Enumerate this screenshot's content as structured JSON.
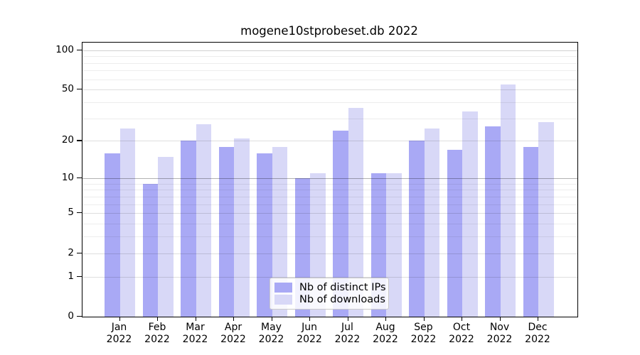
{
  "title": "mogene10stprobeset.db 2022",
  "legend": {
    "items": [
      {
        "label": "Nb of distinct IPs"
      },
      {
        "label": "Nb of downloads"
      }
    ]
  },
  "colors": {
    "distinct_ips_bar": "#a9a9f5",
    "downloads_bar": "#d8d8f7",
    "axis": "#000000",
    "major_gridline_10": "rgba(0,0,0,0.30)",
    "labeled_gridline": "rgba(0,0,0,0.13)",
    "gridline_100": "rgba(0,0,0,0.18)",
    "minor_gridline": "rgba(0,0,0,0.07)"
  },
  "chart_data": {
    "type": "bar",
    "title": "mogene10stprobeset.db 2022",
    "categories": [
      "Jan 2022",
      "Feb 2022",
      "Mar 2022",
      "Apr 2022",
      "May 2022",
      "Jun 2022",
      "Jul 2022",
      "Aug 2022",
      "Sep 2022",
      "Oct 2022",
      "Nov 2022",
      "Dec 2022"
    ],
    "series": [
      {
        "name": "Nb of distinct IPs",
        "color": "#a9a9f5",
        "values": [
          16,
          9,
          20,
          18,
          16,
          10,
          24,
          11,
          20,
          17,
          26,
          18
        ]
      },
      {
        "name": "Nb of downloads",
        "color": "#d8d8f7",
        "values": [
          25,
          15,
          27,
          21,
          18,
          11,
          36,
          11,
          25,
          34,
          55,
          28
        ]
      }
    ],
    "xlabel": "",
    "ylabel": "",
    "y_scale": "log1p",
    "y_ticks": [
      0,
      1,
      2,
      5,
      10,
      20,
      50,
      100
    ],
    "y_minor_gridlines": [
      3,
      4,
      6,
      7,
      8,
      9,
      30,
      40,
      60,
      70,
      80,
      90
    ],
    "ylim": [
      0,
      115
    ],
    "grid": true,
    "legend_position": "bottom-center"
  }
}
